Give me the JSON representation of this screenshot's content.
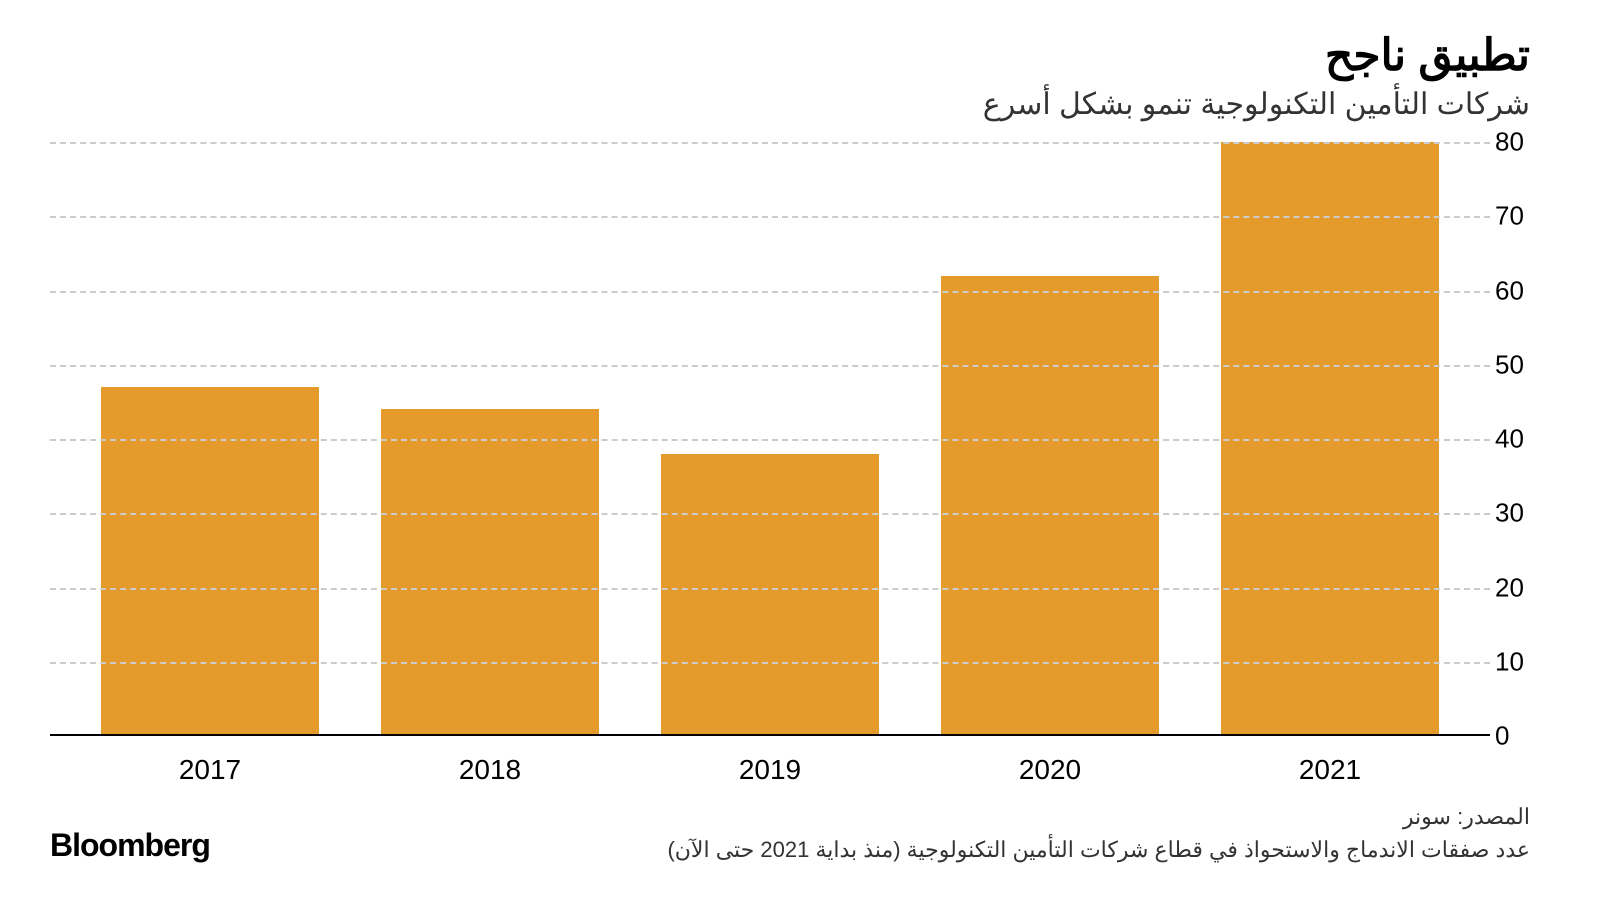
{
  "header": {
    "title": "تطبيق ناجح",
    "subtitle": "شركات التأمين التكنولوجية تنمو بشكل أسرع"
  },
  "chart": {
    "type": "bar",
    "categories": [
      "2017",
      "2018",
      "2019",
      "2020",
      "2021"
    ],
    "values": [
      47,
      44,
      38,
      62,
      80
    ],
    "bar_color": "#e59a2c",
    "ylim": [
      0,
      80
    ],
    "yticks": [
      0,
      10,
      20,
      30,
      40,
      50,
      60,
      70,
      80
    ],
    "grid_color": "#cccccc",
    "baseline_color": "#000000",
    "background_color": "#ffffff",
    "axis_fontsize": 26,
    "xlabel_fontsize": 28,
    "bar_width_ratio": 0.78
  },
  "footer": {
    "source_line1": "المصدر: سونر",
    "source_line2": "عدد صفقات الاندماج والاستحواذ في قطاع شركات التأمين التكنولوجية  (منذ بداية 2021 حتى الآن)",
    "brand": "Bloomberg"
  }
}
